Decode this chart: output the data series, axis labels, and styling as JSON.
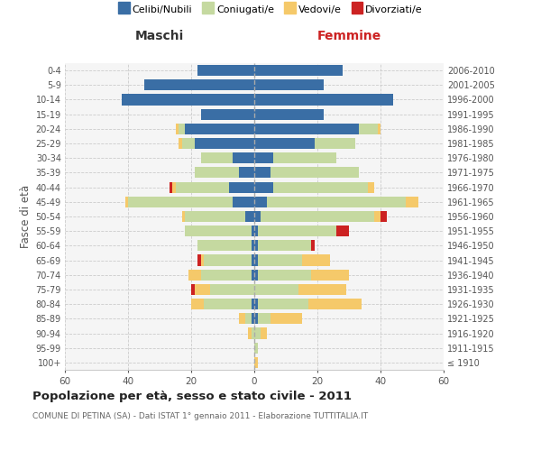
{
  "age_groups": [
    "100+",
    "95-99",
    "90-94",
    "85-89",
    "80-84",
    "75-79",
    "70-74",
    "65-69",
    "60-64",
    "55-59",
    "50-54",
    "45-49",
    "40-44",
    "35-39",
    "30-34",
    "25-29",
    "20-24",
    "15-19",
    "10-14",
    "5-9",
    "0-4"
  ],
  "birth_years": [
    "≤ 1910",
    "1911-1915",
    "1916-1920",
    "1921-1925",
    "1926-1930",
    "1931-1935",
    "1936-1940",
    "1941-1945",
    "1946-1950",
    "1951-1955",
    "1956-1960",
    "1961-1965",
    "1966-1970",
    "1971-1975",
    "1976-1980",
    "1981-1985",
    "1986-1990",
    "1991-1995",
    "1996-2000",
    "2001-2005",
    "2006-2010"
  ],
  "colors": {
    "celibi": "#3a6ea5",
    "coniugati": "#c5d9a0",
    "vedovi": "#f5c96a",
    "divorziati": "#cc2222"
  },
  "male": {
    "celibi": [
      0,
      0,
      0,
      1,
      1,
      0,
      1,
      1,
      1,
      1,
      3,
      7,
      8,
      5,
      7,
      19,
      22,
      17,
      42,
      35,
      18
    ],
    "coniugati": [
      0,
      0,
      1,
      2,
      15,
      14,
      16,
      15,
      17,
      21,
      19,
      33,
      17,
      14,
      10,
      4,
      2,
      0,
      0,
      0,
      0
    ],
    "vedovi": [
      0,
      0,
      1,
      2,
      4,
      5,
      4,
      1,
      0,
      0,
      1,
      1,
      1,
      0,
      0,
      1,
      1,
      0,
      0,
      0,
      0
    ],
    "divorziati": [
      0,
      0,
      0,
      0,
      0,
      1,
      0,
      1,
      0,
      0,
      0,
      0,
      1,
      0,
      0,
      0,
      0,
      0,
      0,
      0,
      0
    ]
  },
  "female": {
    "celibi": [
      0,
      0,
      0,
      1,
      1,
      0,
      1,
      1,
      1,
      1,
      2,
      4,
      6,
      5,
      6,
      19,
      33,
      22,
      44,
      22,
      28
    ],
    "coniugati": [
      0,
      1,
      2,
      4,
      16,
      14,
      17,
      14,
      17,
      25,
      36,
      44,
      30,
      28,
      20,
      13,
      6,
      0,
      0,
      0,
      0
    ],
    "vedovi": [
      1,
      0,
      2,
      10,
      17,
      15,
      12,
      9,
      0,
      0,
      2,
      4,
      2,
      0,
      0,
      0,
      1,
      0,
      0,
      0,
      0
    ],
    "divorziati": [
      0,
      0,
      0,
      0,
      0,
      0,
      0,
      0,
      1,
      4,
      2,
      0,
      0,
      0,
      0,
      0,
      0,
      0,
      0,
      0,
      0
    ]
  },
  "xlim": 60,
  "title": "Popolazione per età, sesso e stato civile - 2011",
  "subtitle": "COMUNE DI PETINA (SA) - Dati ISTAT 1° gennaio 2011 - Elaborazione TUTTITALIA.IT",
  "ylabel_left": "Fasce di età",
  "header_left": "Maschi",
  "header_right": "Femmine",
  "legend_labels": [
    "Celibi/Nubili",
    "Coniugati/e",
    "Vedovi/e",
    "Divorziati/e"
  ],
  "background_color": "#f5f5f5",
  "grid_color": "#cccccc"
}
